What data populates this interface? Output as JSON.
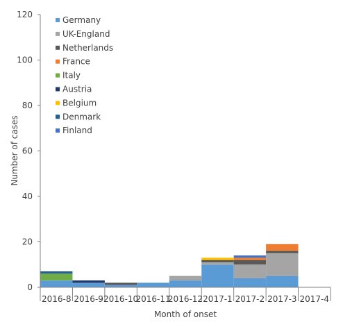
{
  "chart_data": {
    "type": "bar",
    "stacked": true,
    "xlabel": "Month of onset",
    "ylabel": "Number of cases",
    "ylim": [
      0,
      120
    ],
    "yticks": [
      0,
      20,
      40,
      60,
      80,
      100,
      120
    ],
    "grid": false,
    "legend_position": "top-left",
    "categories": [
      "2016-8",
      "2016-9",
      "2016-10",
      "2016-11",
      "2016-12",
      "2017-1",
      "2017-2",
      "2017-3",
      "2017-4"
    ],
    "series": [
      {
        "name": "Germany",
        "color": "#5b9bd5",
        "values": [
          3,
          2,
          1,
          2,
          3,
          10,
          4,
          5,
          0
        ]
      },
      {
        "name": "UK-England",
        "color": "#a5a5a5",
        "values": [
          0,
          0,
          0,
          0,
          2,
          1,
          6,
          10,
          0
        ]
      },
      {
        "name": "Netherlands",
        "color": "#595959",
        "values": [
          0,
          0,
          1,
          0,
          0,
          1,
          2,
          1,
          0
        ]
      },
      {
        "name": "France",
        "color": "#ed7d31",
        "values": [
          0,
          0,
          0,
          0,
          0,
          0,
          1,
          3,
          0
        ]
      },
      {
        "name": "Italy",
        "color": "#70ad47",
        "values": [
          3,
          0,
          0,
          0,
          0,
          0,
          0,
          0,
          0
        ]
      },
      {
        "name": "Austria",
        "color": "#1f3864",
        "values": [
          0,
          1,
          0,
          0,
          0,
          0,
          0,
          0,
          0
        ]
      },
      {
        "name": "Belgium",
        "color": "#ffc000",
        "values": [
          0,
          0,
          0,
          0,
          0,
          1,
          0,
          0,
          0
        ]
      },
      {
        "name": "Denmark",
        "color": "#255e91",
        "values": [
          1,
          0,
          0,
          0,
          0,
          0,
          0,
          0,
          0
        ]
      },
      {
        "name": "Finland",
        "color": "#4472c4",
        "values": [
          0,
          0,
          0,
          0,
          0,
          0,
          1,
          0,
          0
        ]
      }
    ]
  }
}
